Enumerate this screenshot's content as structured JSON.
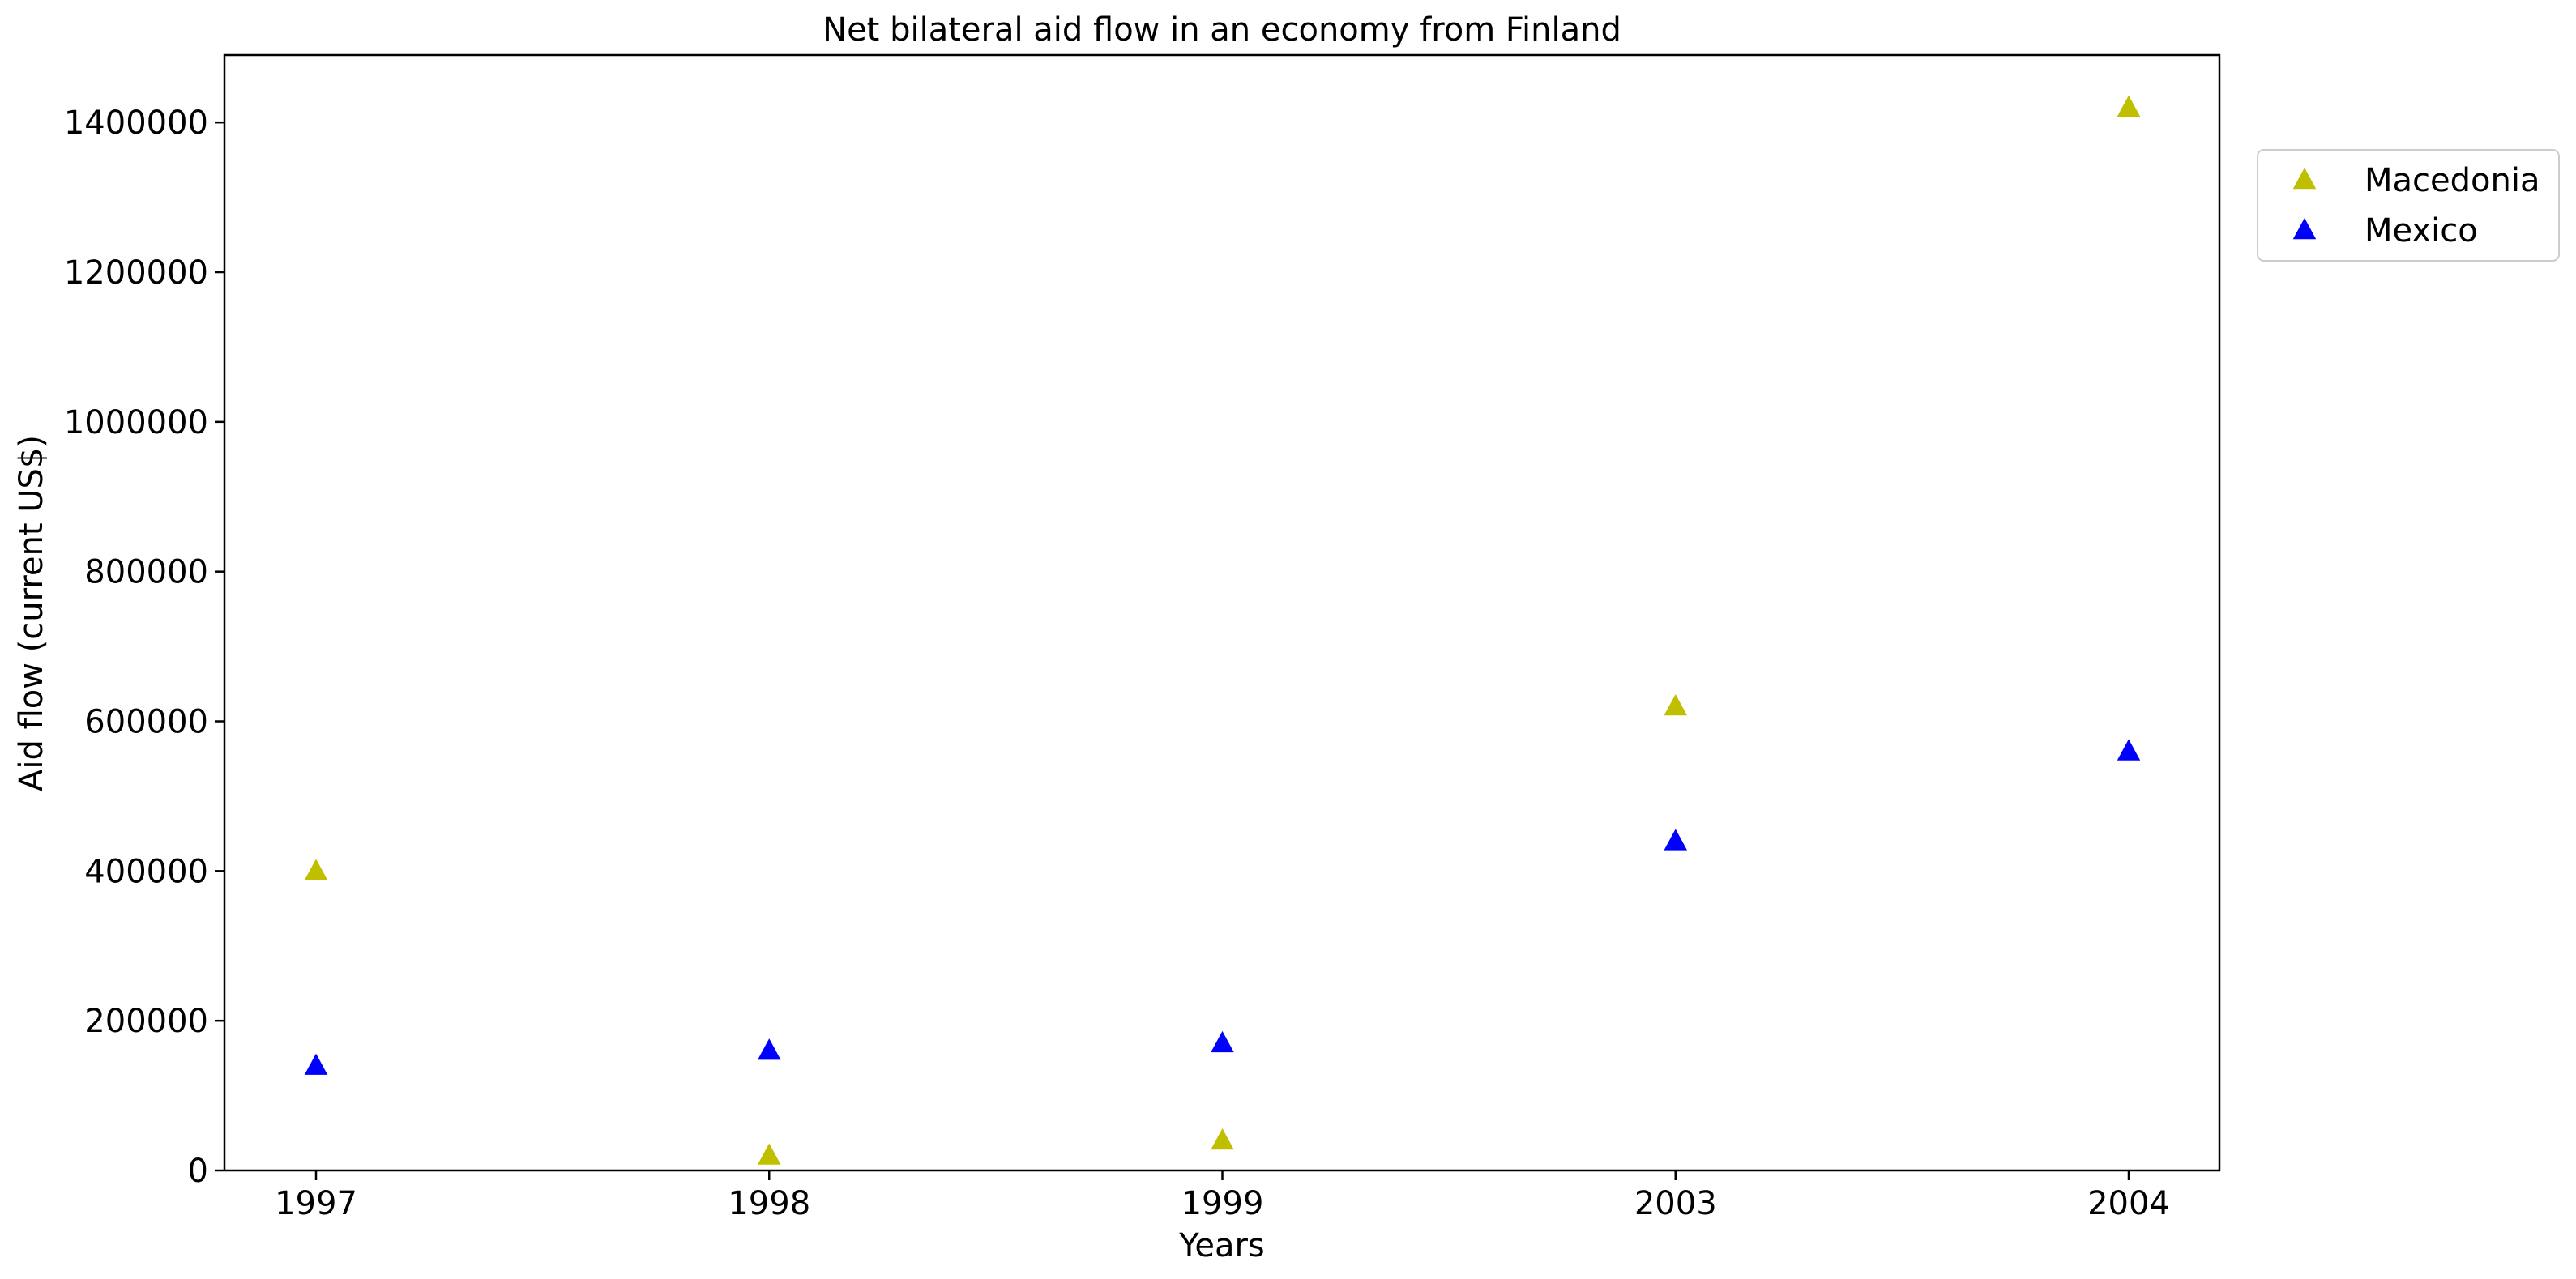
{
  "chart_data": {
    "type": "scatter",
    "title": "Net bilateral aid flow in an economy from Finland",
    "xlabel": "Years",
    "ylabel": "Aid flow (current US$)",
    "categories": [
      "1997",
      "1998",
      "1999",
      "2003",
      "2004"
    ],
    "y_ticks": [
      "0",
      "200000",
      "400000",
      "600000",
      "800000",
      "1000000",
      "1200000",
      "1400000"
    ],
    "ylim": [
      0,
      1490000
    ],
    "grid": false,
    "legend_position": "upper-right outside plot",
    "marker": "triangle",
    "series": [
      {
        "name": "Macedonia",
        "color": "#bfbf00",
        "values": [
          400000,
          20000,
          40000,
          620000,
          1420000
        ]
      },
      {
        "name": "Mexico",
        "color": "#0000ff",
        "values": [
          140000,
          160000,
          170000,
          440000,
          560000
        ]
      }
    ]
  }
}
